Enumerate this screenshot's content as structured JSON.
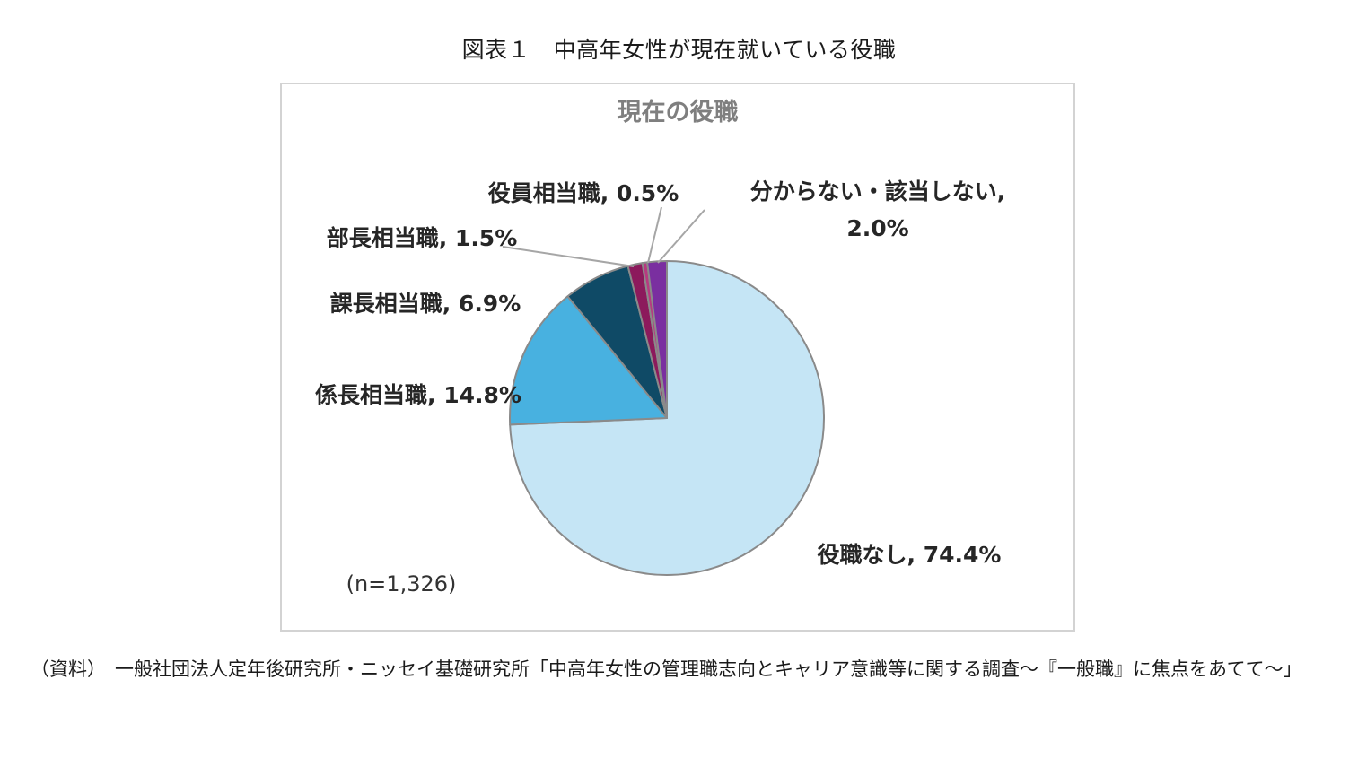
{
  "figure": {
    "title": "図表１　中高年女性が現在就いている役職",
    "source_label": "（資料）",
    "source_text": "一般社団法人定年後研究所・ニッセイ基礎研究所「中高年女性の管理職志向とキャリア意識等に関する調査～『一般職』に焦点をあてて～」"
  },
  "chart_data": {
    "type": "pie",
    "title": "現在の役職",
    "sample_note": "(n=1,326)",
    "unit": "%",
    "start": "12 o'clock",
    "direction": "clockwise",
    "slices": [
      {
        "label": "役職なし",
        "value": 74.4,
        "value_label": "74.4%",
        "color": "#c5e5f5"
      },
      {
        "label": "係長相当職",
        "value": 14.8,
        "value_label": "14.8%",
        "color": "#48b1e0"
      },
      {
        "label": "課長相当職",
        "value": 6.9,
        "value_label": "6.9%",
        "color": "#0f4a66"
      },
      {
        "label": "部長相当職",
        "value": 1.5,
        "value_label": "1.5%",
        "color": "#8c1a5c"
      },
      {
        "label": "役員相当職",
        "value": 0.5,
        "value_label": "0.5%",
        "color": "#b73a80"
      },
      {
        "label": "分からない・該当しない",
        "value": 2.0,
        "value_label": "2.0%",
        "color": "#7a2fa0"
      }
    ],
    "colors": {
      "slice_border": "#8a8a8a",
      "leader_line": "#a6a6a6",
      "title_color": "#7f7f7f"
    }
  }
}
